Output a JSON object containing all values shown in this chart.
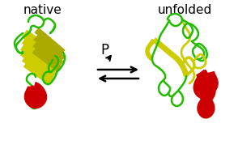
{
  "label_native": "native",
  "label_unfolded": "unfolded",
  "label_pressure": "P",
  "bg_color": "#ffffff",
  "label_fontsize": 11,
  "label_color": "#000000",
  "green_color": "#22bb00",
  "yellow_color": "#cccc00",
  "olive_color": "#aaaa00",
  "red_color": "#cc0000",
  "figsize": [
    2.94,
    1.89
  ],
  "dpi": 100
}
